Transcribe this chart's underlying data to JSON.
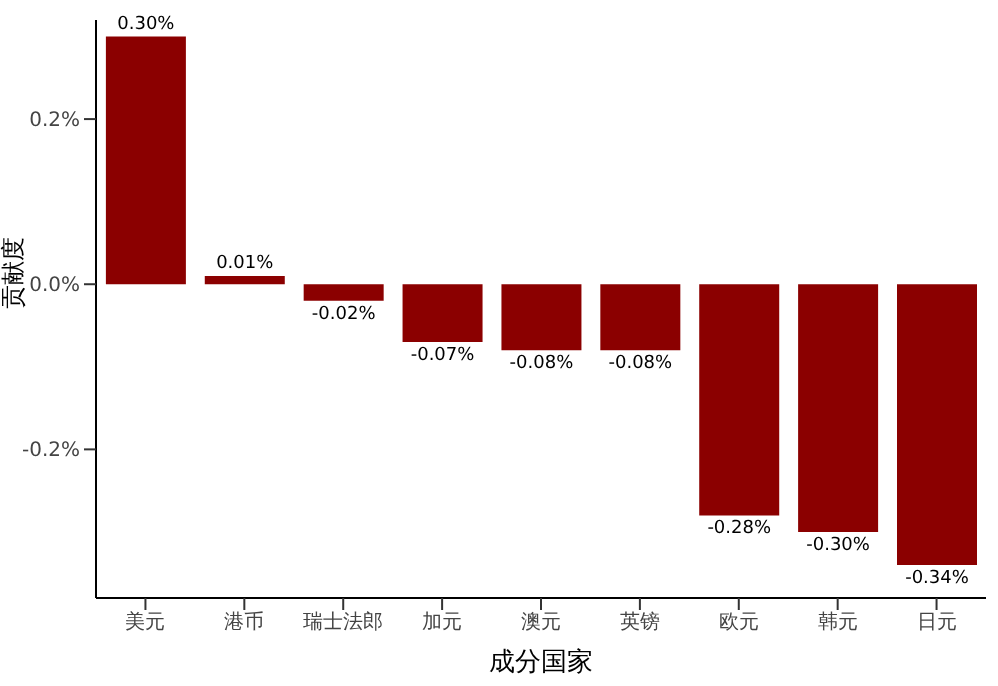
{
  "chart_data": {
    "type": "bar",
    "xlabel": "成分国家",
    "ylabel": "贡献度",
    "categories": [
      "美元",
      "港币",
      "瑞士法郎",
      "加元",
      "澳元",
      "英镑",
      "欧元",
      "韩元",
      "日元"
    ],
    "values": [
      0.3,
      0.01,
      -0.02,
      -0.07,
      -0.08,
      -0.08,
      -0.28,
      -0.3,
      -0.34
    ],
    "value_labels": [
      "0.30%",
      "0.01%",
      "-0.02%",
      "-0.07%",
      "-0.08%",
      "-0.08%",
      "-0.28%",
      "-0.30%",
      "-0.34%"
    ],
    "color": "#8b0000",
    "ylim": [
      -0.38,
      0.32
    ],
    "yticks": [
      {
        "value": -0.2,
        "label": "-0.2%"
      },
      {
        "value": 0,
        "label": "0.0%"
      },
      {
        "value": 0.2,
        "label": "0.2%"
      }
    ],
    "grid": false,
    "legend": false
  }
}
